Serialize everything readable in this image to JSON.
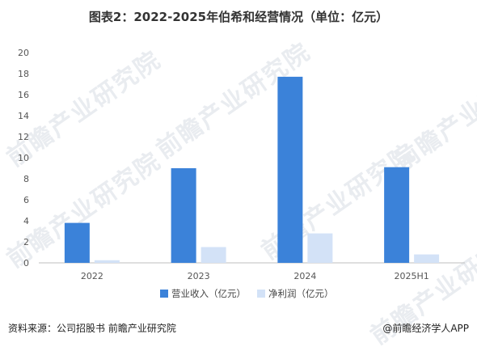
{
  "title": "图表2：2022-2025年伯希和经营情况（单位：亿元）",
  "watermark": "前瞻产业研究院",
  "footer": {
    "source": "资料来源：公司招股书  前瞻产业研究院",
    "brand": "@前瞻经济学人APP"
  },
  "colors": {
    "revenue": "#3b82d9",
    "profit": "#d3e2f7",
    "axis": "#bfbfbf"
  },
  "chart_data": {
    "type": "bar",
    "categories": [
      "2022",
      "2023",
      "2024",
      "2025H1"
    ],
    "series": [
      {
        "name": "营业收入（亿元）",
        "values": [
          3.8,
          9.0,
          17.7,
          9.1
        ]
      },
      {
        "name": "净利润（亿元）",
        "values": [
          0.25,
          1.5,
          2.8,
          0.8
        ]
      }
    ],
    "ylim": [
      0,
      20
    ],
    "yticks": [
      0,
      2,
      4,
      6,
      8,
      10,
      12,
      14,
      16,
      18,
      20
    ],
    "grid": false,
    "legend_position": "bottom"
  }
}
